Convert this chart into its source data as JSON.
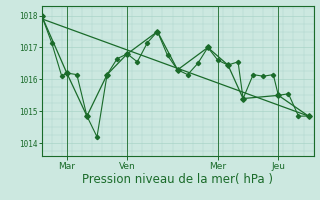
{
  "background_color": "#cce8e0",
  "line_color": "#1a6b2a",
  "grid_color": "#aad4c8",
  "ylabel_ticks": [
    1014,
    1015,
    1016,
    1017,
    1018
  ],
  "xlim": [
    0,
    27
  ],
  "ylim": [
    1013.6,
    1018.3
  ],
  "xlabel": "Pression niveau de la mer( hPa )",
  "xlabel_fontsize": 8.5,
  "day_labels": [
    "Mar",
    "Ven",
    "Mer",
    "Jeu"
  ],
  "day_positions": [
    2.5,
    8.5,
    17.5,
    23.5
  ],
  "day_vlines": [
    2.5,
    8.5,
    17.5,
    23.5
  ],
  "series1": [
    [
      0,
      1018.0
    ],
    [
      1,
      1017.15
    ],
    [
      2,
      1016.1
    ],
    [
      2.5,
      1016.2
    ],
    [
      3.5,
      1016.15
    ],
    [
      4.5,
      1014.85
    ],
    [
      5.5,
      1014.2
    ],
    [
      6.5,
      1016.15
    ],
    [
      7.5,
      1016.65
    ],
    [
      8.5,
      1016.8
    ],
    [
      9.5,
      1016.55
    ],
    [
      10.5,
      1017.15
    ],
    [
      11.5,
      1017.5
    ],
    [
      12.5,
      1016.75
    ],
    [
      13.5,
      1016.3
    ],
    [
      14.5,
      1016.15
    ],
    [
      15.5,
      1016.5
    ],
    [
      16.5,
      1017.0
    ],
    [
      17.5,
      1016.6
    ],
    [
      18.5,
      1016.45
    ],
    [
      19.5,
      1016.55
    ],
    [
      20.0,
      1015.4
    ],
    [
      21.0,
      1016.15
    ],
    [
      22.0,
      1016.1
    ],
    [
      23.0,
      1016.15
    ],
    [
      23.5,
      1015.5
    ],
    [
      24.5,
      1015.55
    ],
    [
      25.5,
      1014.85
    ],
    [
      26.5,
      1014.85
    ]
  ],
  "series2_x": [
    0,
    2.5,
    4.5,
    6.5,
    8.5,
    11.5,
    13.5,
    16.5,
    18.5,
    20.0,
    23.5,
    26.5
  ],
  "series2_y": [
    1018.0,
    1016.2,
    1014.85,
    1016.15,
    1016.8,
    1017.5,
    1016.3,
    1017.0,
    1016.45,
    1015.4,
    1015.5,
    1014.85
  ],
  "trend_x": [
    0,
    26.5
  ],
  "trend_y": [
    1017.9,
    1014.85
  ]
}
